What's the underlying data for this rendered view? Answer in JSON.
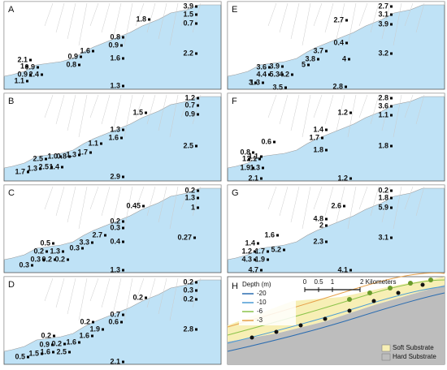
{
  "panels": [
    {
      "letter": "A",
      "labels": [
        "1.8",
        "3.9",
        "1.5",
        "0.7",
        "0.8",
        "0.9",
        "1.6",
        "2.2",
        "0.9",
        "0.8",
        "1.6",
        "2.1",
        "1",
        "0.9",
        "0.9",
        "2.4",
        "1.1",
        "1.3"
      ]
    },
    {
      "letter": "B",
      "labels": [
        "1.5",
        "1.2",
        "0.7",
        "0.9",
        "1.3",
        "1.6",
        "2.5",
        "1.1",
        "1.7",
        "1.3",
        "2.5",
        "1.0",
        "0.8",
        "1.3",
        "2.5",
        "1.4",
        "1.7",
        "2.9"
      ]
    },
    {
      "letter": "C",
      "labels": [
        "0.45",
        "0.2",
        "1.3",
        "1",
        "0.2",
        "0.3",
        "2.7",
        "0.4",
        "0.27",
        "3.3",
        "0.3",
        "0.5",
        "0.2",
        "1.3",
        "0.3",
        "0.3",
        "0.2",
        "0.2",
        "1.3"
      ]
    },
    {
      "letter": "D",
      "labels": [
        "0.2",
        "0.2",
        "0.3",
        "0.2",
        "0.7",
        "0.6",
        "0.2",
        "1.9",
        "2.8",
        "1.6",
        "1.6",
        "0.2",
        "0.9",
        "0.2",
        "2.5",
        "1.6",
        "1.5",
        "0.5",
        "2.1"
      ]
    },
    {
      "letter": "E",
      "labels": [
        "2.7",
        "3.1",
        "3.9",
        "2.7",
        "0.4",
        "3.7",
        "3.8",
        "4",
        "3.2",
        "5",
        "3.6",
        "3.9",
        "4.4",
        "5.3",
        "4.2",
        "3",
        "1.3",
        "3.5",
        "2.8"
      ]
    },
    {
      "letter": "F",
      "labels": [
        "2.8",
        "3.6",
        "1.1",
        "1.2",
        "1.4",
        "1.7",
        "0.6",
        "1.8",
        "1.8",
        "1.1",
        "0.8",
        "1",
        "2.1",
        "1.9",
        "1.3",
        "2.1",
        "1.2"
      ]
    },
    {
      "letter": "G",
      "labels": [
        "0.2",
        "1.8",
        "5.9",
        "2.6",
        "4.8",
        "2",
        "1.6",
        "2.3",
        "3.1",
        "1.4",
        "5.2",
        "1.2",
        "1.7",
        "4.3",
        "1.9",
        "4.7",
        "4.1"
      ]
    }
  ],
  "inset": {
    "letter": "H",
    "legend_title": "Depth (m)",
    "depths": [
      "-20",
      "-10",
      "-6",
      "-3"
    ],
    "scale": [
      "0",
      "0.5",
      "1",
      "2 Kilometers"
    ],
    "substrates": [
      "Soft Substrate",
      "Hard Substrate"
    ]
  }
}
